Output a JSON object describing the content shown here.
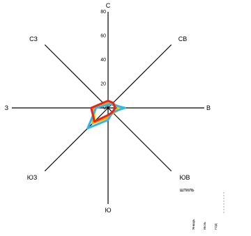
{
  "chart_data": {
    "type": "radar",
    "directions": [
      "С",
      "СВ",
      "В",
      "ЮВ",
      "Ю",
      "ЮЗ",
      "З",
      "СЗ"
    ],
    "radial_ticks": [
      0,
      20,
      40,
      60,
      80
    ],
    "rmax": 80,
    "calm_label": "штиль",
    "series": [
      {
        "name": "Январь",
        "color": "#e8231c",
        "values": [
          6,
          6,
          6,
          5,
          6,
          16,
          14,
          6
        ]
      },
      {
        "name": "Июль",
        "color": "#35b6e6",
        "values": [
          3,
          4,
          14,
          5,
          10,
          24,
          10,
          3
        ]
      },
      {
        "name": "ГОД",
        "color": "#f5a800",
        "values": [
          4,
          5,
          12,
          6,
          8,
          18,
          12,
          4
        ]
      },
      {
        "name": "",
        "color": "#f5e216",
        "values": [
          3,
          4,
          10,
          5,
          7,
          16,
          11,
          3
        ]
      }
    ]
  }
}
